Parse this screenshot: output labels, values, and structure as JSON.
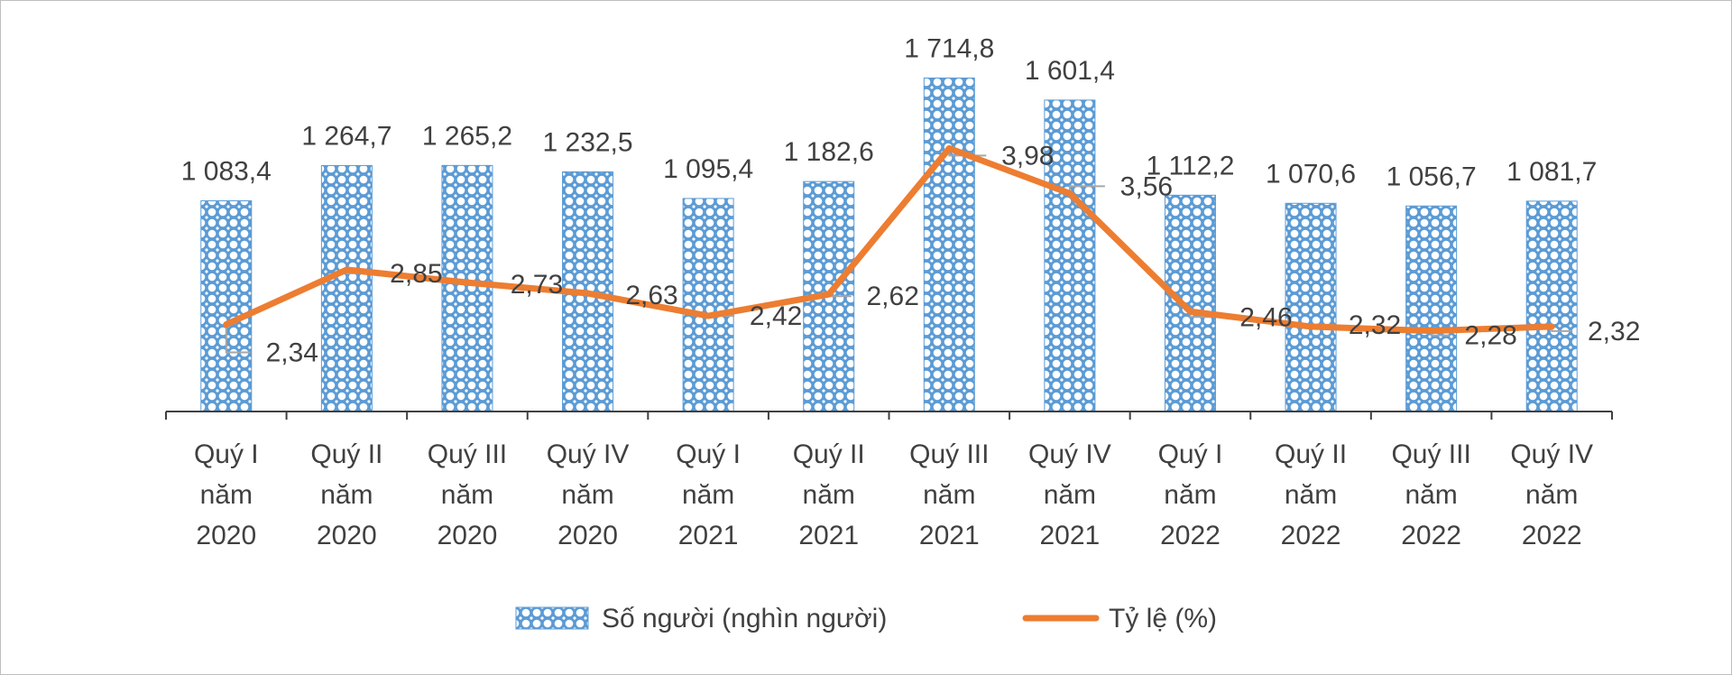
{
  "chart_data": {
    "type": "bar+line",
    "title": "",
    "categories": [
      [
        "Quý I",
        "năm",
        "2020"
      ],
      [
        "Quý II",
        "năm",
        "2020"
      ],
      [
        "Quý III",
        "năm",
        "2020"
      ],
      [
        "Quý IV",
        "năm",
        "2020"
      ],
      [
        "Quý I",
        "năm",
        "2021"
      ],
      [
        "Quý II",
        "năm",
        "2021"
      ],
      [
        "Quý III",
        "năm",
        "2021"
      ],
      [
        "Quý IV",
        "năm",
        "2021"
      ],
      [
        "Quý I",
        "năm",
        "2022"
      ],
      [
        "Quý II",
        "năm",
        "2022"
      ],
      [
        "Quý III",
        "năm",
        "2022"
      ],
      [
        "Quý IV",
        "năm",
        "2022"
      ]
    ],
    "series": [
      {
        "name": "Số người (nghìn người)",
        "type": "bar",
        "axis": "primary",
        "values": [
          1083.4,
          1264.7,
          1265.2,
          1232.5,
          1095.4,
          1182.6,
          1714.8,
          1601.4,
          1112.2,
          1070.6,
          1056.7,
          1081.7
        ],
        "labels": [
          "1 083,4",
          "1 264,7",
          "1 265,2",
          "1 232,5",
          "1 095,4",
          "1 182,6",
          "1 714,8",
          "1 601,4",
          "1 112,2",
          "1 070,6",
          "1 056,7",
          "1 081,7"
        ],
        "color": "#5b9bd5"
      },
      {
        "name": "Tỷ lệ (%)",
        "type": "line",
        "axis": "secondary",
        "values": [
          2.34,
          2.85,
          2.73,
          2.63,
          2.42,
          2.62,
          3.98,
          3.56,
          2.46,
          2.32,
          2.28,
          2.32
        ],
        "labels": [
          "2,34",
          "2,85",
          "2,73",
          "2,63",
          "2,42",
          "2,62",
          "3,98",
          "3,56",
          "2,46",
          "2,32",
          "2,28",
          "2,32"
        ],
        "color": "#ed7d31"
      }
    ],
    "ylim_primary": [
      0,
      1800
    ],
    "ylim_secondary": [
      0,
      4.2
    ],
    "grid": false,
    "legend_position": "bottom"
  }
}
